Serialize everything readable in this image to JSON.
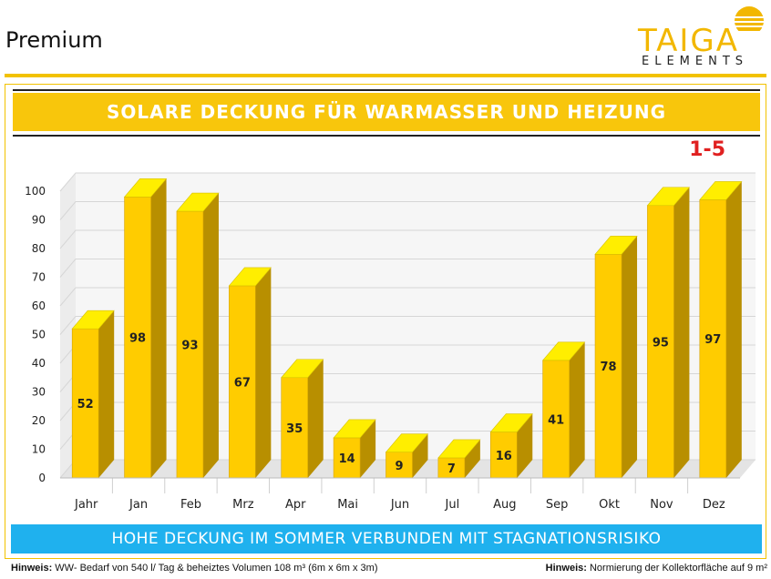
{
  "header": {
    "title": "Premium",
    "logo_word": "TAIGA",
    "logo_sub": "ELEMENTS"
  },
  "banner": {
    "title": "SOLARE DECKUNG FÜR WARMASSER UND HEIZUNG",
    "badge": "1-5"
  },
  "footer": {
    "banner": "HOHE DECKUNG IM SOMMER VERBUNDEN MIT STAGNATIONSRISIKO",
    "note_left_label": "Hinweis:",
    "note_left_text": "WW- Bedarf von 540 l/ Tag & beheiztes Volumen 108 m³ (6m x 6m x 3m)",
    "note_right_label": "Hinweis:",
    "note_right_text": "Normierung der Kollektorfläche auf 9 m²"
  },
  "colors": {
    "accent": "#f8c60c",
    "bar_front": "#ffcc00",
    "bar_side": "#b88f00",
    "bar_top": "#ffee00",
    "footer_banner": "#1fb1ee",
    "badge": "#e02020"
  },
  "chart_data": {
    "type": "bar",
    "categories": [
      "Jahr",
      "Jan",
      "Feb",
      "Mrz",
      "Apr",
      "Mai",
      "Jun",
      "Jul",
      "Aug",
      "Sep",
      "Okt",
      "Nov",
      "Dez"
    ],
    "values": [
      52,
      98,
      93,
      67,
      35,
      14,
      9,
      7,
      16,
      41,
      78,
      95,
      97
    ],
    "ylim": [
      0,
      100
    ],
    "yticks": [
      0,
      10,
      20,
      30,
      40,
      50,
      60,
      70,
      80,
      90,
      100
    ],
    "title": "SOLARE DECKUNG FÜR WARMASSER UND HEIZUNG",
    "grid": true,
    "style": "3d"
  }
}
